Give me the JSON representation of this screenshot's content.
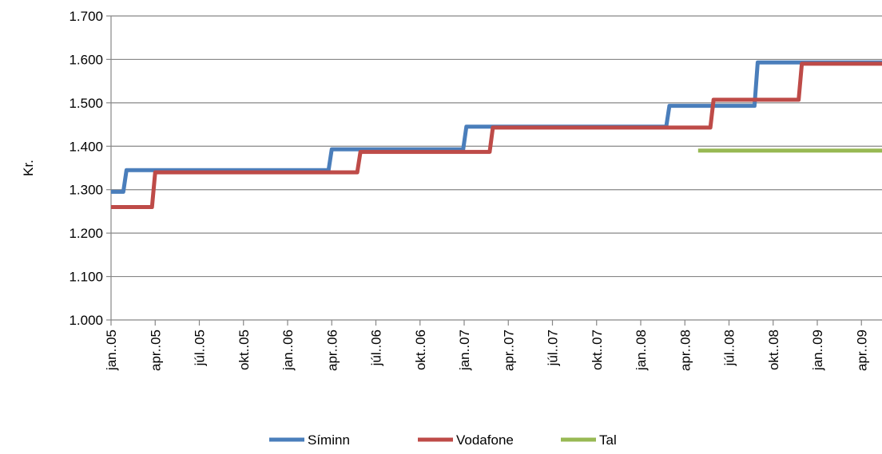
{
  "chart_data": {
    "type": "line",
    "title": "",
    "xlabel": "",
    "ylabel": "Kr.",
    "ylim": [
      1000,
      1700
    ],
    "yticks": [
      "1.000",
      "1.100",
      "1.200",
      "1.300",
      "1.400",
      "1.500",
      "1.600",
      "1.700"
    ],
    "categories": [
      "jan..05",
      "apr..05",
      "júl..05",
      "okt..05",
      "jan..06",
      "apr..06",
      "júl..06",
      "okt..06",
      "jan..07",
      "apr..07",
      "júl..07",
      "okt..07",
      "jan..08",
      "apr..08",
      "júl..08",
      "okt..08",
      "jan..09",
      "apr..09"
    ],
    "grid": true,
    "legend_position": "bottom",
    "series": [
      {
        "name": "Síminn",
        "color": "#4a7ebb",
        "step": true,
        "points": [
          {
            "x": 0.0,
            "y": 1295
          },
          {
            "x": 0.35,
            "y": 1345
          },
          {
            "x": 5.0,
            "y": 1393
          },
          {
            "x": 8.05,
            "y": 1445
          },
          {
            "x": 12.65,
            "y": 1493
          },
          {
            "x": 14.65,
            "y": 1593
          },
          {
            "x": 17.55,
            "y": 1593
          }
        ]
      },
      {
        "name": "Vodafone",
        "color": "#be4b48",
        "step": true,
        "points": [
          {
            "x": 0.0,
            "y": 1260
          },
          {
            "x": 1.0,
            "y": 1340
          },
          {
            "x": 5.65,
            "y": 1387
          },
          {
            "x": 8.65,
            "y": 1443
          },
          {
            "x": 13.65,
            "y": 1507
          },
          {
            "x": 15.65,
            "y": 1590
          },
          {
            "x": 17.55,
            "y": 1590
          }
        ]
      },
      {
        "name": "Tal",
        "color": "#98b954",
        "step": false,
        "points": [
          {
            "x": 13.3,
            "y": 1390
          },
          {
            "x": 17.55,
            "y": 1390
          }
        ]
      }
    ]
  }
}
